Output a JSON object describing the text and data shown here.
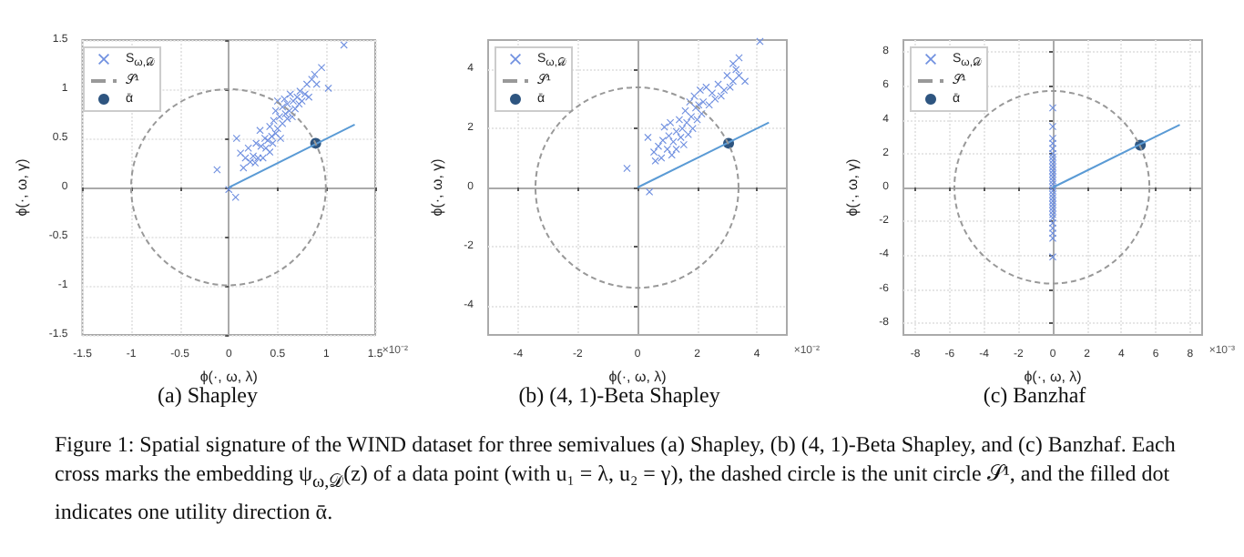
{
  "chart_data": [
    {
      "type": "scatter",
      "title": "(a) Shapley",
      "xlabel": "ϕ(·, ω, λ)",
      "ylabel": "ϕ(·, ω, γ)",
      "xlim": [
        -1.5,
        1.5
      ],
      "ylim": [
        -1.5,
        1.5
      ],
      "xticks": [
        -1.5,
        -1.0,
        -0.5,
        0.0,
        0.5,
        1.0,
        1.5
      ],
      "yticks": [
        -1.5,
        -1.0,
        -0.5,
        0.0,
        0.5,
        1.0,
        1.5
      ],
      "grid": true,
      "legend": "top left",
      "annotations": [
        "×10⁻²",
        "𝒮¹",
        "Figure 1: Spatial signature of the WIND dataset for three semivalues (a) Shapley, (b) (4, 1)-Beta Shapley, and (c) Banzhaf. Each cross marks the embedding ψ$_{ω,𝒟}$(z) of a data point (with u₁ = λ, u₂ = γ), the dashed circle is the unit circle 𝒮¹, and the filled dot indicates one utility direction ᾱ."
      ],
      "series": [
        {
          "name": "S$_{ω,𝒟}$",
          "marker": "cross",
          "color": "#7090e0",
          "x": [
            0.08,
            0.12,
            0.15,
            0.17,
            0.2,
            0.22,
            0.25,
            0.27,
            0.28,
            0.3,
            0.32,
            0.33,
            0.35,
            0.37,
            0.38,
            0.4,
            0.42,
            0.42,
            0.44,
            0.45,
            0.46,
            0.48,
            0.48,
            0.5,
            0.5,
            0.52,
            0.53,
            0.55,
            0.55,
            0.57,
            0.58,
            0.6,
            0.6,
            0.62,
            0.63,
            0.65,
            0.66,
            0.68,
            0.7,
            0.72,
            0.73,
            0.75,
            0.78,
            0.8,
            0.82,
            0.85,
            0.88,
            0.9,
            0.95,
            1.02,
            1.18,
            -0.12,
            0.07,
            0.0
          ],
          "values": [
            0.5,
            0.35,
            0.2,
            0.3,
            0.4,
            0.26,
            0.32,
            0.25,
            0.45,
            0.3,
            0.58,
            0.42,
            0.3,
            0.5,
            0.4,
            0.48,
            0.36,
            0.62,
            0.52,
            0.45,
            0.68,
            0.55,
            0.78,
            0.6,
            0.88,
            0.72,
            0.5,
            0.65,
            0.82,
            0.9,
            0.75,
            0.7,
            0.85,
            0.78,
            0.95,
            0.72,
            0.88,
            0.8,
            0.92,
            0.85,
            0.98,
            0.88,
            0.95,
            1.05,
            0.92,
            1.1,
            1.15,
            1.05,
            1.22,
            1.01,
            1.45,
            0.18,
            -0.1,
            -0.02
          ]
        },
        {
          "name": "ᾱ",
          "marker": "circle",
          "color": "#2e5580",
          "x": [
            0.89
          ],
          "values": [
            0.45
          ]
        },
        {
          "type": "line",
          "line_style": "solid",
          "color": "#5b9bd5",
          "x": [
            0,
            1.29
          ],
          "values": [
            0,
            0.64
          ]
        }
      ]
    },
    {
      "type": "scatter",
      "title": "(b) (4, 1)-Beta Shapley",
      "xlabel": "ϕ(·, ω, λ)",
      "ylabel": "ϕ(·, ω, γ)",
      "xlim": [
        -5,
        5
      ],
      "ylim": [
        -5,
        5
      ],
      "xticks": [
        -4,
        -2,
        0,
        2,
        4
      ],
      "yticks": [
        -4,
        -2,
        0,
        2,
        4
      ],
      "grid": true,
      "legend": "top left",
      "annotations": [
        "×10⁻²",
        "𝒮¹"
      ],
      "series": [
        {
          "name": "S$_{ω,𝒟}$",
          "marker": "cross",
          "color": "#7090e0",
          "x": [
            -0.35,
            0.4,
            0.35,
            0.55,
            0.6,
            0.7,
            0.8,
            0.85,
            0.9,
            1.0,
            1.05,
            1.1,
            1.15,
            1.2,
            1.3,
            1.3,
            1.4,
            1.45,
            1.5,
            1.55,
            1.6,
            1.65,
            1.7,
            1.75,
            1.8,
            1.85,
            1.9,
            1.95,
            2.0,
            2.05,
            2.1,
            2.15,
            2.2,
            2.3,
            2.4,
            2.5,
            2.6,
            2.7,
            2.8,
            2.9,
            3.0,
            3.1,
            3.2,
            3.3,
            3.4,
            3.6,
            3.2,
            3.4,
            4.1
          ],
          "values": [
            0.65,
            -0.15,
            1.7,
            1.2,
            0.9,
            1.4,
            1.0,
            1.6,
            2.05,
            1.3,
            1.75,
            2.2,
            1.1,
            1.55,
            1.9,
            1.3,
            2.3,
            1.7,
            2.0,
            1.45,
            2.6,
            2.2,
            1.8,
            2.9,
            2.4,
            2.0,
            3.1,
            2.7,
            2.3,
            2.8,
            3.3,
            2.5,
            2.9,
            3.4,
            2.8,
            3.2,
            3.0,
            3.5,
            3.1,
            3.3,
            3.8,
            3.4,
            3.6,
            4.0,
            3.8,
            3.6,
            4.2,
            4.4,
            4.95
          ]
        },
        {
          "name": "ᾱ",
          "marker": "circle",
          "color": "#2e5580",
          "x": [
            3.05
          ],
          "values": [
            1.5
          ]
        },
        {
          "type": "line",
          "line_style": "solid",
          "color": "#5b9bd5",
          "x": [
            0,
            4.4
          ],
          "values": [
            0,
            2.2
          ]
        }
      ]
    },
    {
      "type": "scatter",
      "title": "(c) Banzhaf",
      "xlabel": "ϕ(·, ω, λ)",
      "ylabel": "ϕ(·, ω, γ)",
      "xlim": [
        -8.7,
        8.7
      ],
      "ylim": [
        -8.7,
        8.7
      ],
      "xticks": [
        -8,
        -6,
        -4,
        -2,
        0,
        2,
        4,
        6,
        8
      ],
      "yticks": [
        -8,
        -6,
        -4,
        -2,
        0,
        2,
        4,
        6,
        8
      ],
      "grid": true,
      "legend": "top left",
      "annotations": [
        "×10⁻³",
        "𝒮¹"
      ],
      "series": [
        {
          "name": "S$_{ω,𝒟}$",
          "marker": "cross",
          "color": "#7090e0",
          "x": [
            0,
            0,
            0,
            0,
            0,
            0,
            0,
            0,
            0,
            0,
            0,
            0,
            0,
            0,
            0,
            0,
            0,
            0,
            0,
            0,
            0,
            0,
            0,
            0,
            0,
            0,
            0,
            0,
            0,
            0
          ],
          "values": [
            4.7,
            3.6,
            2.9,
            2.6,
            2.3,
            2.0,
            1.8,
            1.6,
            1.4,
            1.2,
            1.0,
            0.8,
            0.6,
            0.4,
            0.2,
            0.0,
            -0.2,
            -0.4,
            -0.6,
            -0.8,
            -1.0,
            -1.2,
            -1.4,
            -1.6,
            -1.8,
            -2.1,
            -2.4,
            -2.7,
            -3.0,
            -4.1
          ]
        },
        {
          "name": "ᾱ",
          "marker": "circle",
          "color": "#2e5580",
          "x": [
            5.1
          ],
          "values": [
            2.5
          ]
        },
        {
          "type": "line",
          "line_style": "solid",
          "color": "#5b9bd5",
          "x": [
            0,
            7.4
          ],
          "values": [
            0,
            3.7
          ]
        }
      ]
    }
  ]
}
